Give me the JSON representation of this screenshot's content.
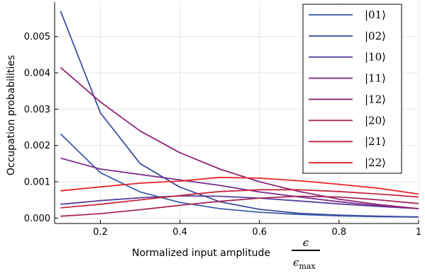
{
  "chart_data": {
    "type": "line",
    "xlabel": "Normalized input amplitude",
    "xlabel_math": {
      "numerator": "ϵ",
      "denominator": "ϵ",
      "denominator_sub": "max"
    },
    "ylabel": "Occupation probabilities",
    "xlim": [
      0.085,
      1.0
    ],
    "ylim": [
      -0.00015,
      0.00595
    ],
    "x_ticks": [
      0.2,
      0.4,
      0.6,
      0.8,
      1.0
    ],
    "x_tick_labels": [
      "0.2",
      "0.4",
      "0.6",
      "0.8",
      "1"
    ],
    "y_ticks": [
      0.0,
      0.001,
      0.002,
      0.003,
      0.004,
      0.005
    ],
    "y_tick_labels": [
      "0.000",
      "0.001",
      "0.002",
      "0.003",
      "0.004",
      "0.005"
    ],
    "grid": true,
    "legend_position": "top-right",
    "x": [
      0.1,
      0.2,
      0.3,
      0.4,
      0.5,
      0.6,
      0.7,
      0.8,
      0.9,
      1.0
    ],
    "series": [
      {
        "name": "|01⟩",
        "color": "#3f5fa8",
        "values": [
          0.00232,
          0.00125,
          0.00072,
          0.00043,
          0.00026,
          0.00016,
          0.0001,
          6e-05,
          4e-05,
          3e-05
        ]
      },
      {
        "name": "|02⟩",
        "color": "#3d4d9e",
        "values": [
          0.0057,
          0.0029,
          0.0015,
          0.00085,
          0.00045,
          0.00024,
          0.00013,
          8e-05,
          5e-05,
          3e-05
        ]
      },
      {
        "name": "|10⟩",
        "color": "#5a3d9a",
        "values": [
          0.00038,
          0.00048,
          0.00056,
          0.00061,
          0.0006,
          0.00055,
          0.00047,
          0.00039,
          0.00032,
          0.00026
        ]
      },
      {
        "name": "|11⟩",
        "color": "#7a2f8f",
        "values": [
          0.00165,
          0.00135,
          0.0012,
          0.00105,
          0.0009,
          0.00072,
          0.00058,
          0.00045,
          0.00034,
          0.00026
        ]
      },
      {
        "name": "|12⟩",
        "color": "#8e2575",
        "values": [
          0.00415,
          0.0032,
          0.0024,
          0.0018,
          0.00135,
          0.001,
          0.00073,
          0.00052,
          0.00037,
          0.00026
        ]
      },
      {
        "name": "|20⟩",
        "color": "#a5285b",
        "values": [
          5e-05,
          0.00012,
          0.00023,
          0.00035,
          0.00046,
          0.00055,
          0.0006,
          0.00058,
          0.0005,
          0.0004
        ]
      },
      {
        "name": "|21⟩",
        "color": "#c7283f",
        "values": [
          0.00028,
          0.00038,
          0.0005,
          0.00062,
          0.00073,
          0.00078,
          0.00078,
          0.00073,
          0.00066,
          0.00058
        ]
      },
      {
        "name": "|22⟩",
        "color": "#e8262a",
        "values": [
          0.00075,
          0.00086,
          0.00096,
          0.00102,
          0.00112,
          0.0011,
          0.00103,
          0.00093,
          0.00082,
          0.00066
        ]
      }
    ]
  }
}
